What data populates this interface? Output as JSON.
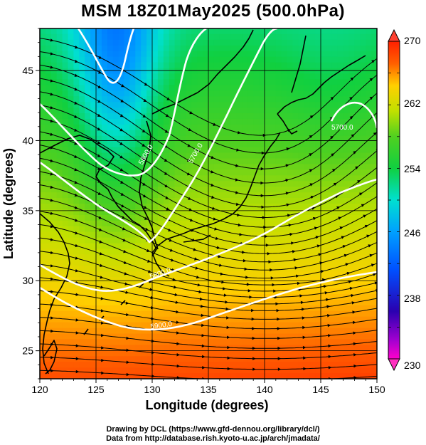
{
  "title": "MSM 18Z01May2025 (500.0hPa)",
  "axes": {
    "x_label": "Longitude (degrees)",
    "y_label": "Latitude  (degrees)",
    "x_range": [
      120,
      150
    ],
    "y_range": [
      23,
      48
    ],
    "x_ticks": [
      "120",
      "125",
      "130",
      "135",
      "140",
      "145",
      "150"
    ],
    "y_ticks": [
      "25",
      "30",
      "35",
      "40",
      "45"
    ]
  },
  "colorbar": {
    "min_label": "230",
    "max_label": "270",
    "tick_labels": [
      "262",
      "254",
      "246",
      "238"
    ],
    "range": [
      230,
      270
    ]
  },
  "contour_labels": [
    "5700.0",
    "5800.0",
    "5900.0",
    "5700.0",
    "5800.0"
  ],
  "field": {
    "variable": "temperature",
    "units": "K",
    "trough_center": {
      "lon": 126.8,
      "lat": 46.0,
      "value": 244
    },
    "warm_corner": {
      "lon": 120.5,
      "lat": 23.0,
      "value": 268
    },
    "vector_style": "streamlines with arrowheads"
  },
  "credits": {
    "line1": "Drawing by DCL (https://www.gfd-dennou.org/library/dcl/)",
    "line2": "Data from http://database.rish.kyoto-u.ac.jp/arch/jmadata/"
  }
}
